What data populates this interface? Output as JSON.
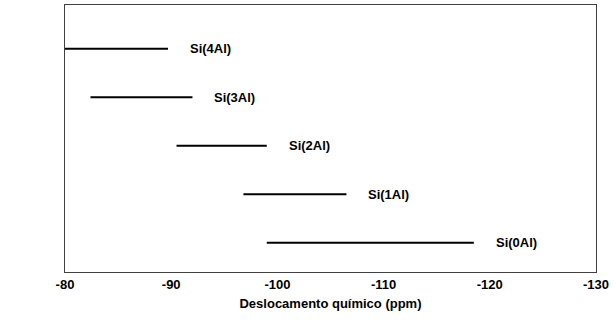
{
  "chart_data": {
    "type": "range",
    "orientation": "horizontal",
    "x_label": "Deslocamento químico (ppm)",
    "categories": [
      "Si(4Al)",
      "Si(3Al)",
      "Si(2Al)",
      "Si(1Al)",
      "Si(0Al)"
    ],
    "values": [
      [
        -80,
        -89.7
      ],
      [
        -82.4,
        -92
      ],
      [
        -90.5,
        -99
      ],
      [
        -96.8,
        -106.5
      ],
      [
        -99,
        -118.5
      ]
    ],
    "color": "#000000",
    "data_labels": true,
    "xlim": [
      -80,
      -130
    ],
    "xticks": [
      -80,
      -90,
      -100,
      -110,
      -120,
      -130
    ],
    "grid": false,
    "tick_labels": "x"
  }
}
